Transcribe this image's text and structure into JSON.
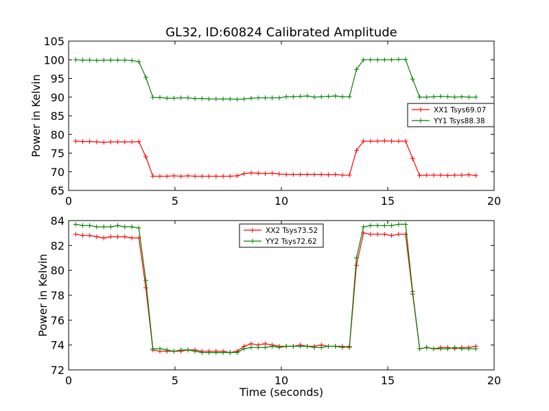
{
  "figure": {
    "title": "GL32, ID:60824 Calibrated Amplitude",
    "xlabel": "Time (seconds)"
  },
  "chart_data": [
    {
      "type": "line",
      "ylabel": "Power in Kelvin",
      "xlim": [
        0,
        20
      ],
      "ylim": [
        65,
        105
      ],
      "xticks": [
        0,
        5,
        10,
        15,
        20
      ],
      "yticks": [
        65,
        70,
        75,
        80,
        85,
        90,
        95,
        100,
        105
      ],
      "show_xlabel": false,
      "grid": false,
      "legend_position": "center-right",
      "x": [
        0.33,
        0.66,
        0.99,
        1.32,
        1.65,
        1.98,
        2.31,
        2.64,
        2.97,
        3.3,
        3.63,
        3.96,
        4.29,
        4.62,
        4.95,
        5.28,
        5.61,
        5.94,
        6.27,
        6.6,
        6.93,
        7.26,
        7.59,
        7.92,
        8.25,
        8.58,
        8.91,
        9.24,
        9.57,
        9.9,
        10.23,
        10.56,
        10.89,
        11.22,
        11.55,
        11.88,
        12.21,
        12.54,
        12.87,
        13.2,
        13.53,
        13.86,
        14.19,
        14.52,
        14.85,
        15.18,
        15.51,
        15.84,
        16.17,
        16.5,
        16.83,
        17.16,
        17.49,
        17.82,
        18.15,
        18.48,
        18.81,
        19.14
      ],
      "series": [
        {
          "name": "XX1 Tsys69.07",
          "color": "#ff0000",
          "values": [
            78.2,
            78.1,
            78.1,
            78.0,
            77.9,
            78.0,
            78.0,
            78.0,
            78.0,
            78.1,
            74.0,
            68.8,
            68.8,
            68.8,
            68.9,
            68.8,
            68.9,
            68.8,
            68.8,
            68.8,
            68.8,
            68.8,
            68.8,
            68.9,
            69.5,
            69.7,
            69.6,
            69.5,
            69.6,
            69.4,
            69.3,
            69.3,
            69.3,
            69.3,
            69.3,
            69.3,
            69.2,
            69.3,
            69.1,
            69.1,
            75.7,
            78.2,
            78.2,
            78.2,
            78.3,
            78.2,
            78.2,
            78.2,
            73.5,
            69.0,
            69.1,
            69.1,
            69.1,
            69.0,
            69.1,
            69.1,
            69.2,
            69.0
          ]
        },
        {
          "name": "YY1 Tsys88.38",
          "color": "#008000",
          "values": [
            100.0,
            99.9,
            99.9,
            99.8,
            99.9,
            99.9,
            99.9,
            99.9,
            99.8,
            99.5,
            95.3,
            89.9,
            89.9,
            89.7,
            89.7,
            89.8,
            89.8,
            89.6,
            89.6,
            89.5,
            89.5,
            89.5,
            89.5,
            89.4,
            89.5,
            89.7,
            89.8,
            89.8,
            89.8,
            89.8,
            90.1,
            90.1,
            90.2,
            90.3,
            90.0,
            90.1,
            90.2,
            90.3,
            90.1,
            90.1,
            97.4,
            100.0,
            100.0,
            100.0,
            100.0,
            100.0,
            100.1,
            100.1,
            94.8,
            90.0,
            90.0,
            90.1,
            90.2,
            90.1,
            90.0,
            90.1,
            90.0,
            90.0
          ]
        }
      ]
    },
    {
      "type": "line",
      "ylabel": "Power in Kelvin",
      "xlim": [
        0,
        20
      ],
      "ylim": [
        72,
        84
      ],
      "xticks": [
        0,
        5,
        10,
        15,
        20
      ],
      "yticks": [
        72,
        74,
        76,
        78,
        80,
        82,
        84
      ],
      "show_xlabel": true,
      "grid": false,
      "legend_position": "top-center",
      "x": [
        0.33,
        0.66,
        0.99,
        1.32,
        1.65,
        1.98,
        2.31,
        2.64,
        2.97,
        3.3,
        3.63,
        3.96,
        4.29,
        4.62,
        4.95,
        5.28,
        5.61,
        5.94,
        6.27,
        6.6,
        6.93,
        7.26,
        7.59,
        7.92,
        8.25,
        8.58,
        8.91,
        9.24,
        9.57,
        9.9,
        10.23,
        10.56,
        10.89,
        11.22,
        11.55,
        11.88,
        12.21,
        12.54,
        12.87,
        13.2,
        13.53,
        13.86,
        14.19,
        14.52,
        14.85,
        15.18,
        15.51,
        15.84,
        16.17,
        16.5,
        16.83,
        17.16,
        17.49,
        17.82,
        18.15,
        18.48,
        18.81,
        19.14
      ],
      "series": [
        {
          "name": "XX2 Tsys73.52",
          "color": "#ff0000",
          "values": [
            82.9,
            82.8,
            82.8,
            82.7,
            82.6,
            82.7,
            82.7,
            82.7,
            82.6,
            82.6,
            78.6,
            73.6,
            73.5,
            73.5,
            73.5,
            73.5,
            73.6,
            73.6,
            73.5,
            73.5,
            73.5,
            73.5,
            73.4,
            73.5,
            73.9,
            74.1,
            74.0,
            74.1,
            74.0,
            73.9,
            73.9,
            73.9,
            74.0,
            73.9,
            73.9,
            74.0,
            73.9,
            73.9,
            73.9,
            73.8,
            80.4,
            83.0,
            82.9,
            82.9,
            82.9,
            82.8,
            82.9,
            82.9,
            78.1,
            73.7,
            73.8,
            73.7,
            73.8,
            73.8,
            73.7,
            73.8,
            73.8,
            73.9
          ]
        },
        {
          "name": "YY2 Tsys72.62",
          "color": "#008000",
          "values": [
            83.7,
            83.6,
            83.6,
            83.5,
            83.5,
            83.5,
            83.6,
            83.5,
            83.5,
            83.4,
            79.2,
            73.7,
            73.7,
            73.6,
            73.5,
            73.6,
            73.6,
            73.5,
            73.4,
            73.4,
            73.4,
            73.4,
            73.4,
            73.4,
            73.7,
            73.8,
            73.8,
            73.8,
            73.9,
            73.8,
            73.9,
            73.9,
            73.9,
            73.9,
            73.8,
            73.8,
            73.9,
            73.9,
            73.8,
            73.9,
            81.0,
            83.5,
            83.6,
            83.6,
            83.6,
            83.6,
            83.7,
            83.7,
            78.3,
            73.7,
            73.8,
            73.7,
            73.7,
            73.7,
            73.8,
            73.7,
            73.7,
            73.7
          ]
        }
      ]
    }
  ]
}
